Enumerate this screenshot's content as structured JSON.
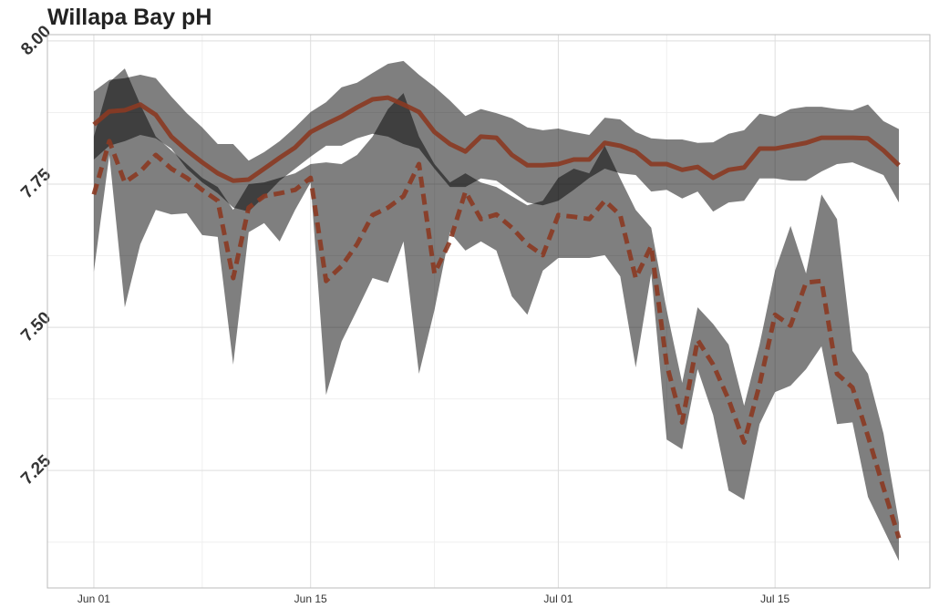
{
  "chart_data": {
    "type": "line",
    "title": "Willapa Bay pH",
    "x": [
      "Jun 01",
      "Jun 02",
      "Jun 03",
      "Jun 04",
      "Jun 05",
      "Jun 06",
      "Jun 07",
      "Jun 08",
      "Jun 09",
      "Jun 10",
      "Jun 11",
      "Jun 12",
      "Jun 13",
      "Jun 14",
      "Jun 15",
      "Jun 16",
      "Jun 17",
      "Jun 18",
      "Jun 19",
      "Jun 20",
      "Jun 21",
      "Jun 22",
      "Jun 23",
      "Jun 24",
      "Jun 25",
      "Jun 26",
      "Jun 27",
      "Jun 28",
      "Jun 29",
      "Jun 30",
      "Jul 01",
      "Jul 02",
      "Jul 03",
      "Jul 04",
      "Jul 05",
      "Jul 06",
      "Jul 07",
      "Jul 08",
      "Jul 09",
      "Jul 10",
      "Jul 11",
      "Jul 12",
      "Jul 13",
      "Jul 14",
      "Jul 15",
      "Jul 16",
      "Jul 17",
      "Jul 18",
      "Jul 19",
      "Jul 20",
      "Jul 21",
      "Jul 22",
      "Jul 23"
    ],
    "xlim": [
      "May 29",
      "Jul 25"
    ],
    "xticks": [
      "Jun 01",
      "Jun 15",
      "Jul 01",
      "Jul 15"
    ],
    "ylim": [
      7.045,
      8.011
    ],
    "yticks": [
      {
        "value": 7.25,
        "label": "7.25"
      },
      {
        "value": 7.5,
        "label": "7.50"
      },
      {
        "value": 7.75,
        "label": "7.75"
      },
      {
        "value": 8,
        "label": "8.00"
      }
    ],
    "grid": true,
    "band_color": "#000000",
    "series": [
      {
        "color": "#8b3a22",
        "dash": false,
        "values": [
          7.854,
          7.877,
          7.879,
          7.889,
          7.871,
          7.833,
          7.809,
          7.788,
          7.769,
          7.756,
          7.758,
          7.777,
          7.796,
          7.814,
          7.841,
          7.855,
          7.868,
          7.884,
          7.898,
          7.901,
          7.889,
          7.876,
          7.841,
          7.82,
          7.807,
          7.833,
          7.831,
          7.801,
          7.783,
          7.783,
          7.785,
          7.793,
          7.793,
          7.822,
          7.817,
          7.807,
          7.785,
          7.785,
          7.775,
          7.78,
          7.761,
          7.775,
          7.779,
          7.812,
          7.812,
          7.817,
          7.822,
          7.831,
          7.831,
          7.831,
          7.83,
          7.809,
          7.783
        ],
        "upper": [
          7.912,
          7.932,
          7.935,
          7.941,
          7.935,
          7.903,
          7.874,
          7.849,
          7.82,
          7.82,
          7.791,
          7.806,
          7.825,
          7.849,
          7.876,
          7.893,
          7.919,
          7.927,
          7.944,
          7.96,
          7.965,
          7.941,
          7.92,
          7.896,
          7.869,
          7.881,
          7.874,
          7.865,
          7.849,
          7.844,
          7.847,
          7.841,
          7.836,
          7.866,
          7.863,
          7.841,
          7.83,
          7.828,
          7.828,
          7.822,
          7.823,
          7.838,
          7.844,
          7.873,
          7.868,
          7.881,
          7.885,
          7.885,
          7.881,
          7.879,
          7.889,
          7.86,
          7.846
        ],
        "lower": [
          7.793,
          7.817,
          7.825,
          7.836,
          7.83,
          7.812,
          7.777,
          7.753,
          7.734,
          7.709,
          7.702,
          7.728,
          7.756,
          7.777,
          7.798,
          7.817,
          7.817,
          7.83,
          7.838,
          7.833,
          7.82,
          7.812,
          7.777,
          7.745,
          7.745,
          7.76,
          7.756,
          7.737,
          7.718,
          7.713,
          7.721,
          7.74,
          7.761,
          7.777,
          7.769,
          7.766,
          7.737,
          7.74,
          7.725,
          7.737,
          7.702,
          7.718,
          7.721,
          7.76,
          7.76,
          7.756,
          7.756,
          7.772,
          7.785,
          7.788,
          7.777,
          7.766,
          7.718
        ]
      },
      {
        "color": "#8b3a22",
        "dash": true,
        "values": [
          7.732,
          7.825,
          7.753,
          7.772,
          7.801,
          7.777,
          7.761,
          7.74,
          7.721,
          7.586,
          7.709,
          7.729,
          7.734,
          7.74,
          7.761,
          7.581,
          7.607,
          7.645,
          7.696,
          7.709,
          7.729,
          7.785,
          7.594,
          7.65,
          7.737,
          7.689,
          7.697,
          7.674,
          7.645,
          7.626,
          7.696,
          7.693,
          7.689,
          7.721,
          7.696,
          7.586,
          7.642,
          7.435,
          7.334,
          7.478,
          7.435,
          7.374,
          7.299,
          7.4,
          7.522,
          7.503,
          7.578,
          7.581,
          7.419,
          7.395,
          7.31,
          7.22,
          7.132
        ],
        "upper": [
          7.833,
          7.928,
          7.952,
          7.889,
          7.833,
          7.809,
          7.785,
          7.761,
          7.745,
          7.705,
          7.75,
          7.753,
          7.761,
          7.769,
          7.785,
          7.788,
          7.785,
          7.801,
          7.833,
          7.881,
          7.909,
          7.833,
          7.785,
          7.753,
          7.769,
          7.753,
          7.745,
          7.729,
          7.713,
          7.721,
          7.761,
          7.777,
          7.769,
          7.817,
          7.76,
          7.705,
          7.674,
          7.53,
          7.403,
          7.535,
          7.506,
          7.47,
          7.363,
          7.47,
          7.599,
          7.677,
          7.594,
          7.732,
          7.689,
          7.459,
          7.419,
          7.315,
          7.159
        ],
        "lower": [
          7.597,
          7.801,
          7.535,
          7.645,
          7.705,
          7.697,
          7.699,
          7.661,
          7.658,
          7.435,
          7.666,
          7.682,
          7.65,
          7.705,
          7.753,
          7.382,
          7.475,
          7.53,
          7.586,
          7.578,
          7.65,
          7.419,
          7.53,
          7.666,
          7.634,
          7.65,
          7.634,
          7.554,
          7.522,
          7.599,
          7.621,
          7.621,
          7.621,
          7.626,
          7.589,
          7.43,
          7.594,
          7.304,
          7.287,
          7.427,
          7.347,
          7.215,
          7.199,
          7.331,
          7.387,
          7.398,
          7.427,
          7.467,
          7.331,
          7.334,
          7.204,
          7.148,
          7.092
        ]
      }
    ]
  }
}
